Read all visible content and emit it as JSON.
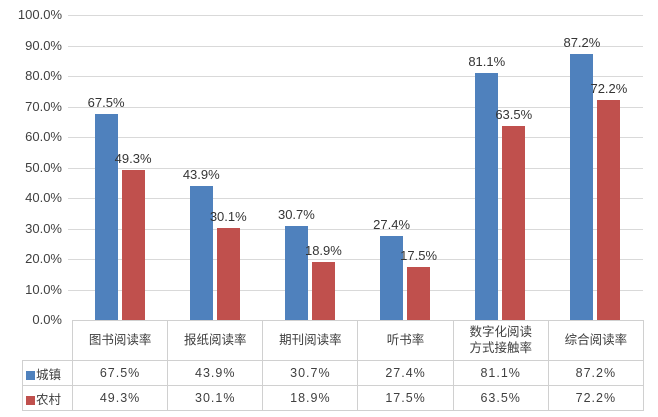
{
  "chart_data": {
    "type": "bar",
    "title": "",
    "xlabel": "",
    "ylabel": "",
    "categories": [
      "图书阅读率",
      "报纸阅读率",
      "期刊阅读率",
      "听书率",
      "数字化阅读方式接触率",
      "综合阅读率"
    ],
    "series": [
      {
        "name": "城镇",
        "color": "#4F81BD",
        "values": [
          67.5,
          43.9,
          30.7,
          27.4,
          81.1,
          87.2
        ],
        "labels": [
          "67.5%",
          "43.9%",
          "30.7%",
          "27.4%",
          "81.1%",
          "87.2%"
        ]
      },
      {
        "name": "农村",
        "color": "#C0504D",
        "values": [
          49.3,
          30.1,
          18.9,
          17.5,
          63.5,
          72.2
        ],
        "labels": [
          "49.3%",
          "30.1%",
          "18.9%",
          "17.5%",
          "63.5%",
          "72.2%"
        ]
      }
    ],
    "ylim": [
      0,
      100
    ],
    "y_tick_labels": [
      "100.0%",
      "90.0%",
      "80.0%",
      "70.0%",
      "60.0%",
      "50.0%",
      "40.0%",
      "30.0%",
      "20.0%",
      "10.0%",
      "0.0%"
    ],
    "grid": true,
    "legend_position": "data-table-left",
    "data_table": {
      "column_headers": [
        "图书阅读率",
        "报纸阅读率",
        "期刊阅读率",
        "听书率",
        "数字化阅读\n方式接触率",
        "综合阅读率"
      ],
      "rows": [
        {
          "legend_color": "#4F81BD",
          "label": "城镇",
          "cells": [
            "67.5%",
            "43.9%",
            "30.7%",
            "27.4%",
            "81.1%",
            "87.2%"
          ]
        },
        {
          "legend_color": "#C0504D",
          "label": "农村",
          "cells": [
            "49.3%",
            "30.1%",
            "18.9%",
            "17.5%",
            "63.5%",
            "72.2%"
          ]
        }
      ]
    }
  },
  "colors": {
    "series_urban": "#4F81BD",
    "series_rural": "#C0504D",
    "gridline": "#D9D9D9",
    "table_border": "#D0D0D0",
    "text": "#3F3F3F",
    "background": "#FFFFFF"
  }
}
